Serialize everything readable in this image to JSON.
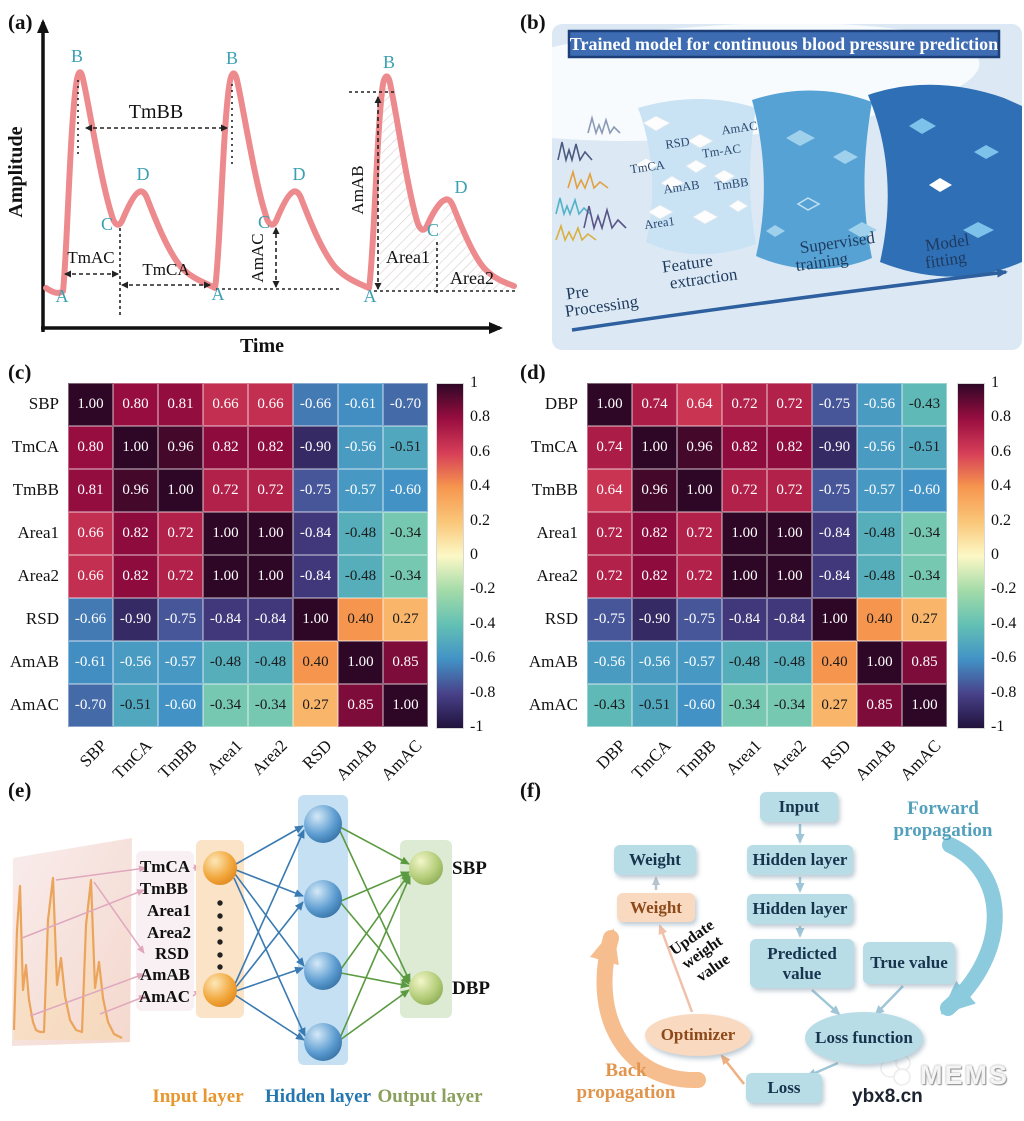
{
  "panels": {
    "a": {
      "letter": "(a)",
      "x_axis_label": "Time",
      "y_axis_label": "Amplitude",
      "points": {
        "a": "A",
        "b": "B",
        "c": "C",
        "d": "D"
      },
      "measurements": {
        "tmbb": "TmBB",
        "tmac": "TmAC",
        "tmca": "TmCA",
        "amac": "AmAC",
        "amab": "AmAB",
        "area1": "Area1",
        "area2": "Area2"
      },
      "waveform_color": "#ec8a8d",
      "point_label_color": "#3aa0b0"
    },
    "b": {
      "letter": "(b)",
      "title": "Trained model for continuous blood pressure prediction",
      "features": [
        "RSD",
        "AmAC",
        "Tm-AC",
        "TmCA",
        "AmAB",
        "TmBB",
        "Area1"
      ],
      "stages": [
        [
          "Pre",
          "Processing"
        ],
        [
          "Feature",
          "extraction"
        ],
        [
          "Supervised",
          "training"
        ],
        [
          "Model",
          "fitting"
        ]
      ],
      "banner_color": "#3e6cb3"
    },
    "e": {
      "letter": "(e)",
      "features": [
        "TmCA",
        "TmBB",
        "Area1",
        "Area2",
        "RSD",
        "AmAB",
        "AmAC"
      ],
      "outputs": {
        "sbp": "SBP",
        "dbp": "DBP"
      },
      "layers": {
        "input": "Input layer",
        "hidden": "Hidden layer",
        "output": "Output layer"
      },
      "layer_label_colors": {
        "input": "#e8962e",
        "hidden": "#2476b0",
        "output": "#8aa05c"
      }
    },
    "f": {
      "letter": "(f)",
      "nodes": {
        "input": "Input",
        "hidden1": "Hidden layer",
        "hidden2": "Hidden layer",
        "predicted": "Predicted value",
        "true_value": "True value",
        "loss_function": "Loss function",
        "loss": "Loss",
        "optimizer": "Optimizer",
        "weight_top": "Weight",
        "weight_mid": "Weight"
      },
      "labels": {
        "forward": "Forward propagation",
        "back": "Back propagation",
        "update": "Update weight value"
      },
      "label_colors": {
        "forward": "#53a0bc",
        "back": "#e1944c"
      }
    }
  },
  "chart_data": [
    {
      "type": "heatmap",
      "panel": "(c)",
      "labels": [
        "SBP",
        "TmCA",
        "TmBB",
        "Area1",
        "Area2",
        "RSD",
        "AmAB",
        "AmAC"
      ],
      "matrix": [
        [
          1.0,
          0.8,
          0.81,
          0.66,
          0.66,
          -0.66,
          -0.61,
          -0.7
        ],
        [
          0.8,
          1.0,
          0.96,
          0.82,
          0.82,
          -0.9,
          -0.56,
          -0.51
        ],
        [
          0.81,
          0.96,
          1.0,
          0.72,
          0.72,
          -0.75,
          -0.57,
          -0.6
        ],
        [
          0.66,
          0.82,
          0.72,
          1.0,
          1.0,
          -0.84,
          -0.48,
          -0.34
        ],
        [
          0.66,
          0.82,
          0.72,
          1.0,
          1.0,
          -0.84,
          -0.48,
          -0.34
        ],
        [
          -0.66,
          -0.9,
          -0.75,
          -0.84,
          -0.84,
          1.0,
          0.4,
          0.27
        ],
        [
          -0.61,
          -0.56,
          -0.57,
          -0.48,
          -0.48,
          0.4,
          1.0,
          0.85
        ],
        [
          -0.7,
          -0.51,
          -0.6,
          -0.34,
          -0.34,
          0.27,
          0.85,
          1.0
        ]
      ],
      "colorbar_ticks": [
        "1",
        "0.8",
        "0.6",
        "0.4",
        "0.2",
        "0",
        "-0.2",
        "-0.4",
        "-0.6",
        "-0.8",
        "-1"
      ],
      "value_range": [
        -1,
        1
      ],
      "colormap": [
        {
          "v": -1.0,
          "c": "#21123c"
        },
        {
          "v": -0.8,
          "c": "#48428a"
        },
        {
          "v": -0.6,
          "c": "#4292c6"
        },
        {
          "v": -0.4,
          "c": "#63c0b4"
        },
        {
          "v": -0.2,
          "c": "#a3dba8"
        },
        {
          "v": 0.0,
          "c": "#fcf8c6"
        },
        {
          "v": 0.2,
          "c": "#fac678"
        },
        {
          "v": 0.4,
          "c": "#f6964e"
        },
        {
          "v": 0.6,
          "c": "#d63e58"
        },
        {
          "v": 0.8,
          "c": "#980d40"
        },
        {
          "v": 1.0,
          "c": "#2f0726"
        }
      ]
    },
    {
      "type": "heatmap",
      "panel": "(d)",
      "labels": [
        "DBP",
        "TmCA",
        "TmBB",
        "Area1",
        "Area2",
        "RSD",
        "AmAB",
        "AmAC"
      ],
      "matrix": [
        [
          1.0,
          0.74,
          0.64,
          0.72,
          0.72,
          -0.75,
          -0.56,
          -0.43
        ],
        [
          0.74,
          1.0,
          0.96,
          0.82,
          0.82,
          -0.9,
          -0.56,
          -0.51
        ],
        [
          0.64,
          0.96,
          1.0,
          0.72,
          0.72,
          -0.75,
          -0.57,
          -0.6
        ],
        [
          0.72,
          0.82,
          0.72,
          1.0,
          1.0,
          -0.84,
          -0.48,
          -0.34
        ],
        [
          0.72,
          0.82,
          0.72,
          1.0,
          1.0,
          -0.84,
          -0.48,
          -0.34
        ],
        [
          -0.75,
          -0.9,
          -0.75,
          -0.84,
          -0.84,
          1.0,
          0.4,
          0.27
        ],
        [
          -0.56,
          -0.56,
          -0.57,
          -0.48,
          -0.48,
          0.4,
          1.0,
          0.85
        ],
        [
          -0.43,
          -0.51,
          -0.6,
          -0.34,
          -0.34,
          0.27,
          0.85,
          1.0
        ]
      ],
      "colorbar_ticks": [
        "1",
        "0.8",
        "0.6",
        "0.4",
        "0.2",
        "0",
        "-0.2",
        "-0.4",
        "-0.6",
        "-0.8",
        "-1"
      ],
      "value_range": [
        -1,
        1
      ],
      "colormap": [
        {
          "v": -1.0,
          "c": "#21123c"
        },
        {
          "v": -0.8,
          "c": "#48428a"
        },
        {
          "v": -0.6,
          "c": "#4292c6"
        },
        {
          "v": -0.4,
          "c": "#63c0b4"
        },
        {
          "v": -0.2,
          "c": "#a3dba8"
        },
        {
          "v": 0.0,
          "c": "#fcf8c6"
        },
        {
          "v": 0.2,
          "c": "#fac678"
        },
        {
          "v": 0.4,
          "c": "#f6964e"
        },
        {
          "v": 0.6,
          "c": "#d63e58"
        },
        {
          "v": 0.8,
          "c": "#980d40"
        },
        {
          "v": 1.0,
          "c": "#2f0726"
        }
      ]
    }
  ],
  "panel_letters": {
    "c": "(c)",
    "d": "(d)"
  },
  "watermark": {
    "brand": "MEMS",
    "site": "ybx8.cn"
  }
}
